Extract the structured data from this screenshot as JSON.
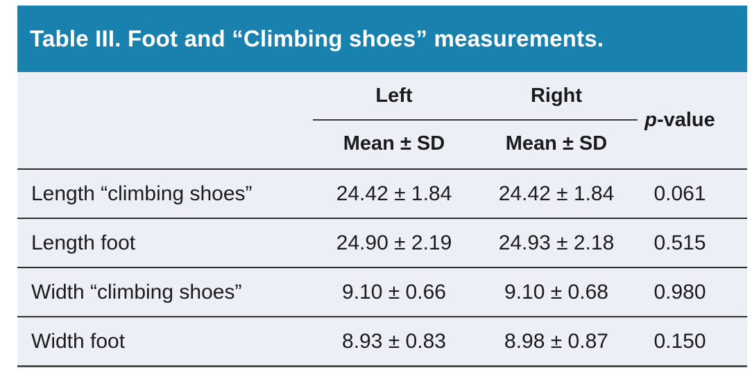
{
  "table": {
    "title": "Table III. Foot and “Climbing shoes” measurements.",
    "columns": {
      "left": "Left",
      "right": "Right",
      "mean_sd": "Mean ± SD",
      "pvalue_italic": "p",
      "pvalue_rest": "-value"
    },
    "rows": [
      {
        "label": "Length “climbing shoes”",
        "left": "24.42 ± 1.84",
        "right": "24.42 ± 1.84",
        "p": "0.061"
      },
      {
        "label": "Length foot",
        "left": "24.90 ± 2.19",
        "right": "24.93 ± 2.18",
        "p": "0.515"
      },
      {
        "label": "Width “climbing shoes”",
        "left": "9.10 ± 0.66",
        "right": "9.10 ± 0.68",
        "p": "0.980"
      },
      {
        "label": "Width foot",
        "left": "8.93 ± 0.83",
        "right": "8.98 ± 0.87",
        "p": "0.150"
      }
    ]
  },
  "colors": {
    "header_bg": "#1981AD",
    "body_bg": "#ECEFF6",
    "text": "#1B1B1E",
    "rule": "#2B2B2B",
    "rule_bottom": "#4D4D4D",
    "title_color": "#FFFFFF"
  }
}
